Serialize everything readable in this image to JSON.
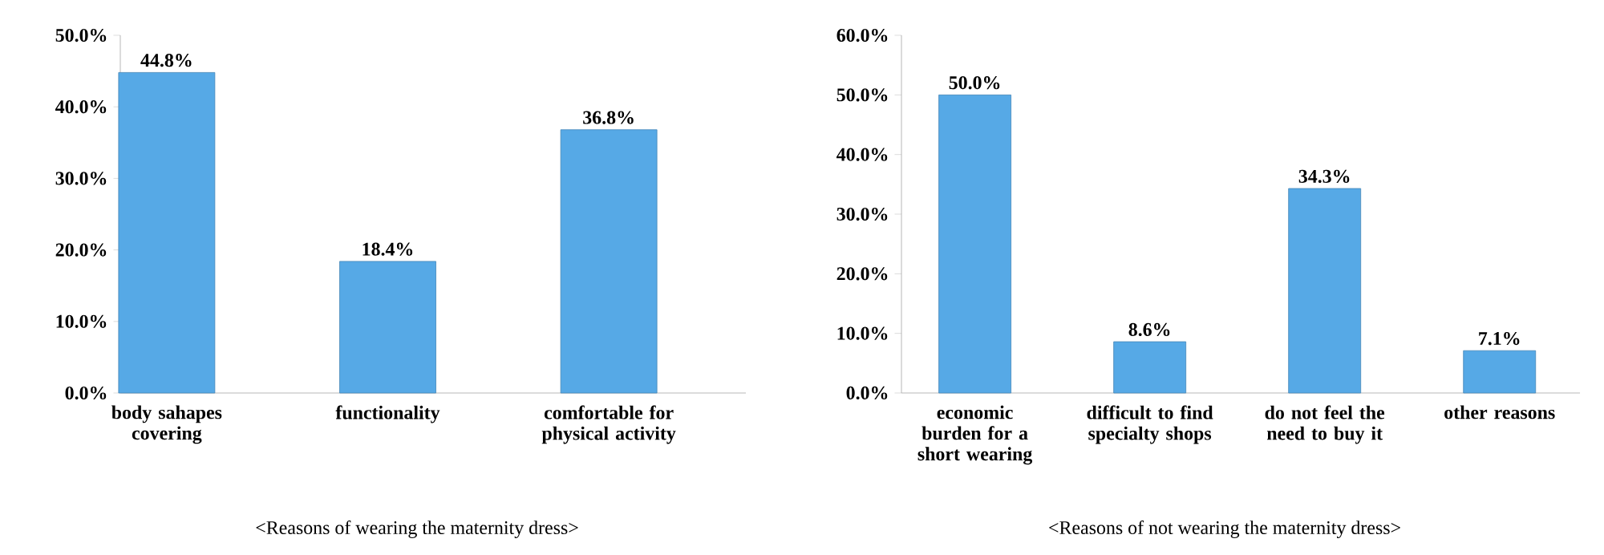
{
  "chart_data": [
    {
      "type": "bar",
      "categories": [
        "body sahapes covering",
        "functionality",
        "comfortable for physical activity"
      ],
      "values": [
        44.8,
        18.4,
        36.8
      ],
      "value_labels": [
        "44.8%",
        "18.4%",
        "36.8%"
      ],
      "color": "#56a9e6",
      "ylim": [
        0,
        50
      ],
      "yticks": [
        {
          "value": 0,
          "label": "0.0%"
        },
        {
          "value": 10,
          "label": "10.0%"
        },
        {
          "value": 20,
          "label": "20.0%"
        },
        {
          "value": 30,
          "label": "30.0%"
        },
        {
          "value": 40,
          "label": "40.0%"
        },
        {
          "value": 50,
          "label": "50.0%"
        }
      ],
      "annotations": [
        "<Reasons of wearing the maternity dress>"
      ]
    },
    {
      "type": "bar",
      "categories": [
        "economic burden for a short wearing",
        "difficult to find specialty shops",
        "do not feel the need to buy it",
        "other reasons"
      ],
      "values": [
        50.0,
        8.6,
        34.3,
        7.1
      ],
      "value_labels": [
        "50.0%",
        "8.6%",
        "34.3%",
        "7.1%"
      ],
      "color": "#56a9e6",
      "ylim": [
        0,
        60
      ],
      "yticks": [
        {
          "value": 0,
          "label": "0.0%"
        },
        {
          "value": 10,
          "label": "10.0%"
        },
        {
          "value": 20,
          "label": "20.0%"
        },
        {
          "value": 30,
          "label": "30.0%"
        },
        {
          "value": 40,
          "label": "40.0%"
        },
        {
          "value": 50,
          "label": "50.0%"
        },
        {
          "value": 60,
          "label": "60.0%"
        }
      ],
      "annotations": [
        "<Reasons of not wearing the maternity dress>"
      ]
    }
  ]
}
